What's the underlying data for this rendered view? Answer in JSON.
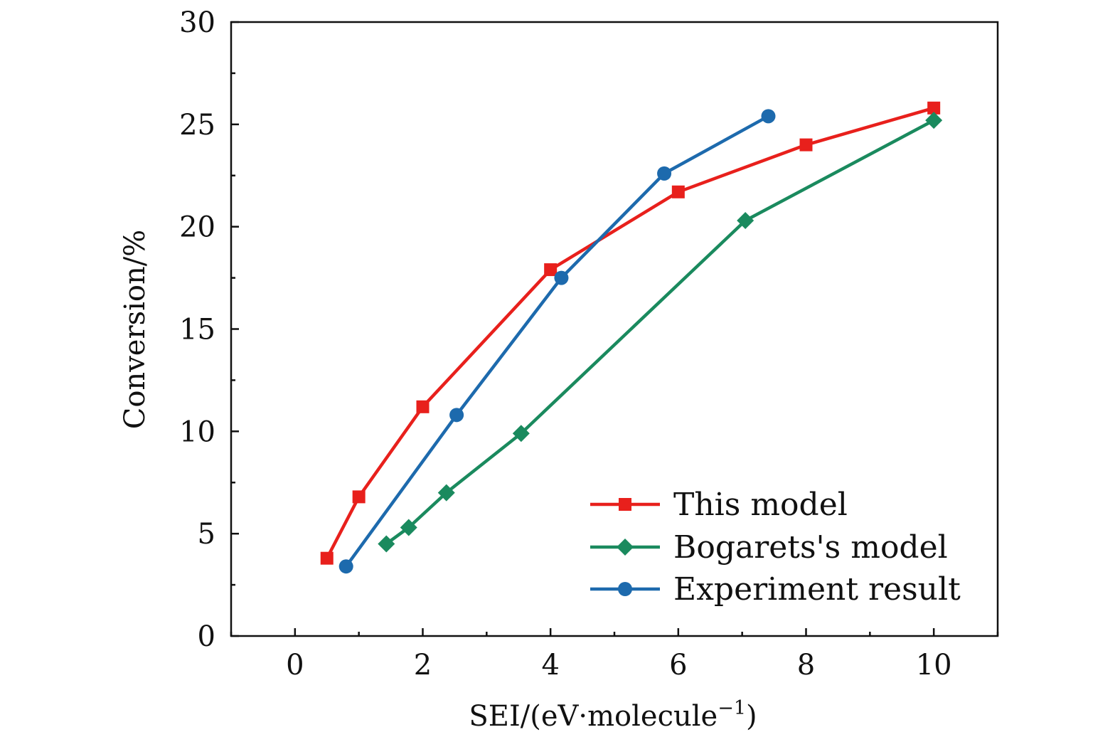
{
  "chart_data": {
    "type": "line",
    "xlabel": "SEI/(eV·molecule",
    "xlabel_sup": "−1",
    "xlabel_close": ")",
    "ylabel": "Conversion/%",
    "xlim": [
      -1,
      11
    ],
    "ylim": [
      0,
      30
    ],
    "x_major_ticks": [
      0,
      2,
      4,
      6,
      8,
      10
    ],
    "x_tick_labels": [
      "0",
      "2",
      "4",
      "6",
      "8",
      "10"
    ],
    "x_minor_ticks": [
      -1,
      1,
      3,
      5,
      7,
      9,
      11
    ],
    "y_major_ticks": [
      0,
      5,
      10,
      15,
      20,
      25,
      30
    ],
    "y_tick_labels": [
      "0",
      "5",
      "10",
      "15",
      "20",
      "25",
      "30"
    ],
    "y_minor_ticks": [
      2.5,
      7.5,
      12.5,
      17.5,
      22.5,
      27.5
    ],
    "grid": false,
    "legend_position": "bottom-right",
    "series": [
      {
        "name": "This model",
        "color": "#e8201c",
        "marker": "square",
        "x": [
          0.5,
          1.0,
          2.0,
          4.0,
          6.0,
          8.0,
          10.0
        ],
        "y": [
          3.8,
          6.8,
          11.2,
          17.9,
          21.7,
          24.0,
          25.8
        ]
      },
      {
        "name": "Bogarets's model",
        "color": "#1a8a5e",
        "marker": "diamond",
        "x": [
          1.43,
          1.78,
          2.37,
          3.54,
          7.05,
          10.0
        ],
        "y": [
          4.5,
          5.3,
          7.0,
          9.9,
          20.3,
          25.2
        ]
      },
      {
        "name": "Experiment result",
        "color": "#1d6aad",
        "marker": "circle",
        "x": [
          0.8,
          2.53,
          4.17,
          5.78,
          7.41
        ],
        "y": [
          3.4,
          10.8,
          17.5,
          22.6,
          25.4
        ]
      }
    ]
  }
}
